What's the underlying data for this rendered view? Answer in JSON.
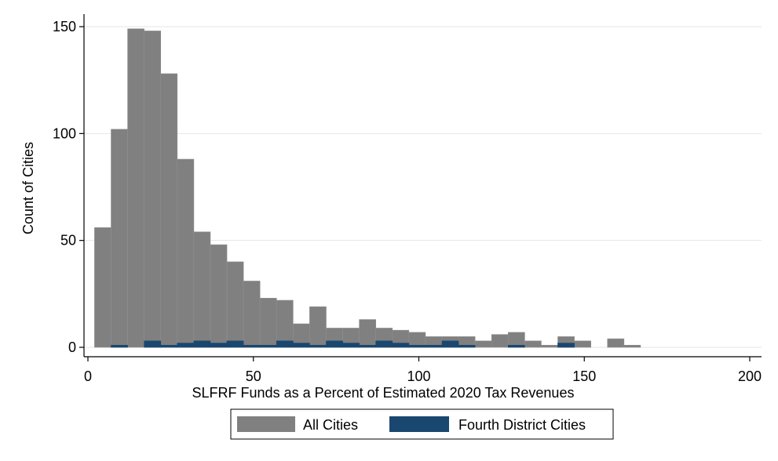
{
  "chart_data": {
    "type": "bar",
    "xlabel": "SLFRF Funds as a Percent of Estimated 2020 Tax Revenues",
    "ylabel": "Count of Cities",
    "xlim": [
      0,
      200
    ],
    "ylim": [
      0,
      150
    ],
    "xticks": [
      0,
      50,
      100,
      150,
      200
    ],
    "yticks": [
      0,
      50,
      100,
      150
    ],
    "grid": true,
    "legend_position": "bottom",
    "bin_start": 2,
    "bin_width": 5,
    "series": [
      {
        "name": "All Cities",
        "color": "#808080",
        "values": [
          56,
          102,
          149,
          148,
          128,
          88,
          54,
          48,
          40,
          31,
          23,
          22,
          11,
          19,
          9,
          9,
          13,
          9,
          8,
          7,
          5,
          5,
          5,
          3,
          6,
          7,
          3,
          1,
          5,
          3,
          0,
          4,
          1
        ]
      },
      {
        "name": "Fourth District Cities",
        "color": "#1a476f",
        "values": [
          0,
          1,
          0,
          3,
          1,
          2,
          3,
          2,
          3,
          1,
          1,
          3,
          2,
          1,
          3,
          2,
          1,
          3,
          2,
          1,
          1,
          3,
          1,
          0,
          0,
          1,
          0,
          0,
          2,
          0,
          0,
          0,
          0
        ]
      }
    ]
  }
}
